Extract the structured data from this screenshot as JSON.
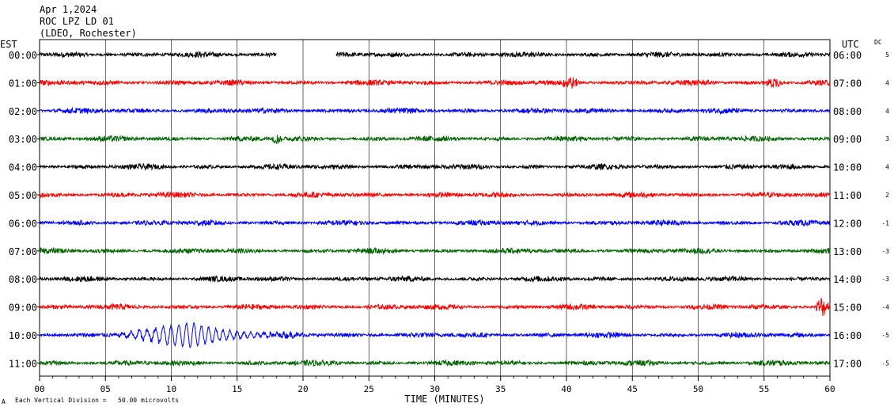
{
  "header": {
    "date": "Apr 1,2024",
    "station": "ROC LPZ LD 01",
    "network": "(LDEO, Rochester)"
  },
  "left_axis_title": "EST",
  "right_axis_title": "UTC",
  "dc_title": "DC",
  "footer": {
    "scale_note": "Each Vertical Division =   50.00 microvolts",
    "corner_mark": "A"
  },
  "colors": {
    "cycle": [
      "#000000",
      "#ff0000",
      "#0000ff",
      "#006400"
    ],
    "grid": "#000000"
  },
  "chart_data": {
    "type": "line",
    "title": "",
    "xlabel": "TIME (MINUTES)",
    "ylabel": "",
    "xlim": [
      0,
      60
    ],
    "x_ticks": [
      "00",
      "05",
      "10",
      "15",
      "20",
      "25",
      "30",
      "35",
      "40",
      "45",
      "50",
      "55",
      "60"
    ],
    "grid": "vertical every 5 minutes",
    "traces": [
      {
        "est": "00:00",
        "utc": "06:00",
        "dc": "5",
        "color": "#000000",
        "gaps": [
          [
            18.0,
            22.5
          ]
        ],
        "events": []
      },
      {
        "est": "01:00",
        "utc": "07:00",
        "dc": "4",
        "color": "#ff0000",
        "gaps": [],
        "events": [
          {
            "start": 39.5,
            "end": 41.0,
            "amp": 1.7
          },
          {
            "start": 55.0,
            "end": 56.5,
            "amp": 1.8
          }
        ]
      },
      {
        "est": "02:00",
        "utc": "08:00",
        "dc": "4",
        "color": "#0000ff",
        "gaps": [],
        "events": []
      },
      {
        "est": "03:00",
        "utc": "09:00",
        "dc": "3",
        "color": "#006400",
        "gaps": [],
        "events": [
          {
            "start": 17.5,
            "end": 18.5,
            "amp": 1.5
          }
        ]
      },
      {
        "est": "04:00",
        "utc": "10:00",
        "dc": "4",
        "color": "#000000",
        "gaps": [],
        "events": []
      },
      {
        "est": "05:00",
        "utc": "11:00",
        "dc": "2",
        "color": "#ff0000",
        "gaps": [],
        "events": []
      },
      {
        "est": "06:00",
        "utc": "12:00",
        "dc": "-1",
        "color": "#0000ff",
        "gaps": [],
        "events": []
      },
      {
        "est": "07:00",
        "utc": "13:00",
        "dc": "-3",
        "color": "#006400",
        "gaps": [],
        "events": []
      },
      {
        "est": "08:00",
        "utc": "14:00",
        "dc": "-3",
        "color": "#000000",
        "gaps": [],
        "events": []
      },
      {
        "est": "09:00",
        "utc": "15:00",
        "dc": "-4",
        "color": "#ff0000",
        "gaps": [],
        "events": [
          {
            "start": 58.8,
            "end": 60.0,
            "amp": 3.0
          }
        ]
      },
      {
        "est": "10:00",
        "utc": "16:00",
        "dc": "-5",
        "color": "#0000ff",
        "gaps": [],
        "events": [
          {
            "start": 5.5,
            "end": 20.0,
            "amp": 6.0,
            "type": "earthquake"
          }
        ]
      },
      {
        "est": "11:00",
        "utc": "17:00",
        "dc": "-5",
        "color": "#006400",
        "gaps": [],
        "events": []
      }
    ]
  }
}
